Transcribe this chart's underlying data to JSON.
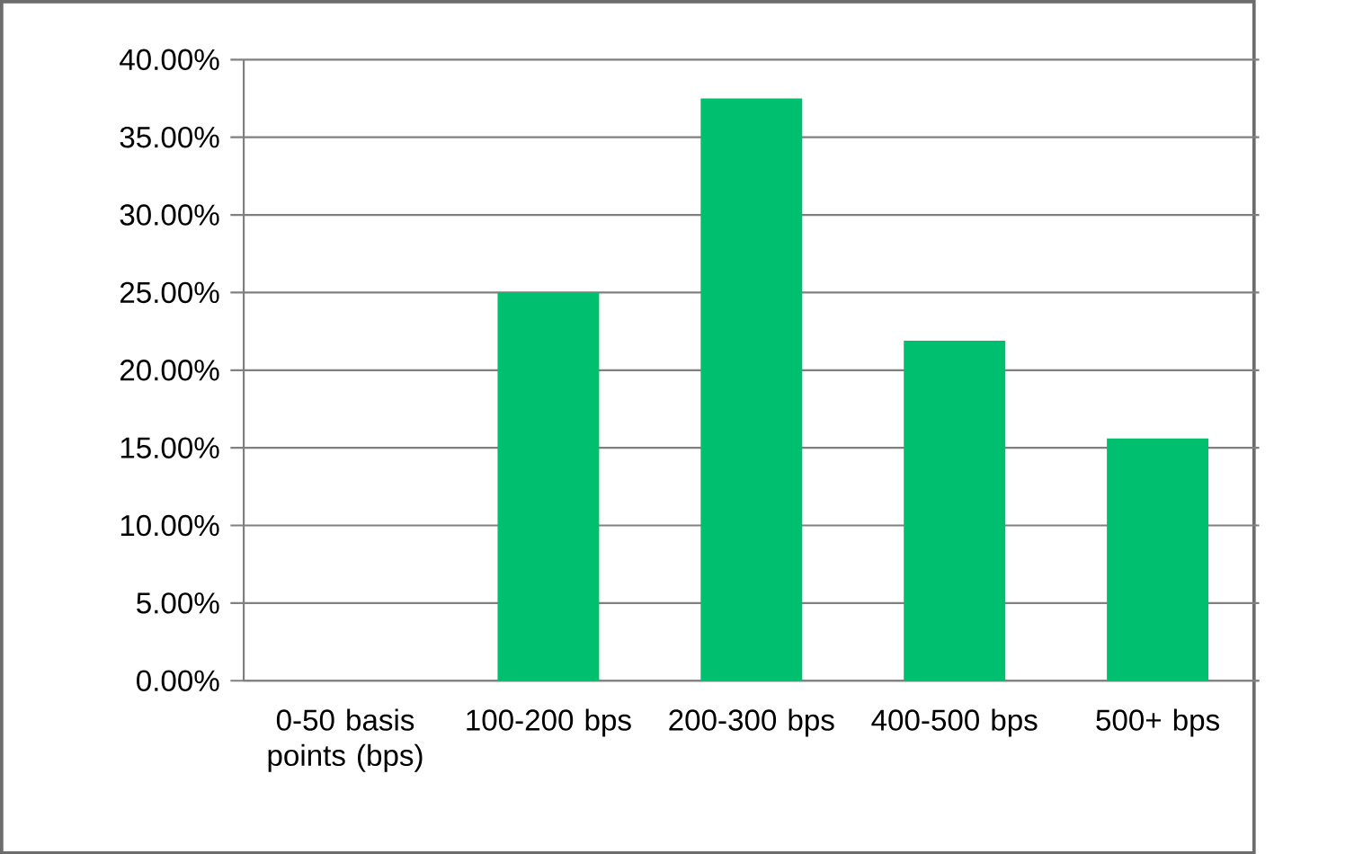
{
  "chart_data": {
    "type": "bar",
    "categories": [
      "0-50 basis points (bps)",
      "100-200 bps",
      "200-300 bps",
      "400-500 bps",
      "500+ bps"
    ],
    "values": [
      0,
      25,
      37.5,
      21.9,
      15.6
    ],
    "color": "#00bf6f",
    "ylim": [
      0,
      40
    ],
    "yticks": [
      {
        "value": 0,
        "label": "0.00%"
      },
      {
        "value": 5,
        "label": "5.00%"
      },
      {
        "value": 10,
        "label": "10.00%"
      },
      {
        "value": 15,
        "label": "15.00%"
      },
      {
        "value": 20,
        "label": "20.00%"
      },
      {
        "value": 25,
        "label": "25.00%"
      },
      {
        "value": 30,
        "label": "30.00%"
      },
      {
        "value": 35,
        "label": "35.00%"
      },
      {
        "value": 40,
        "label": "40.00%"
      }
    ],
    "grid": "y"
  }
}
